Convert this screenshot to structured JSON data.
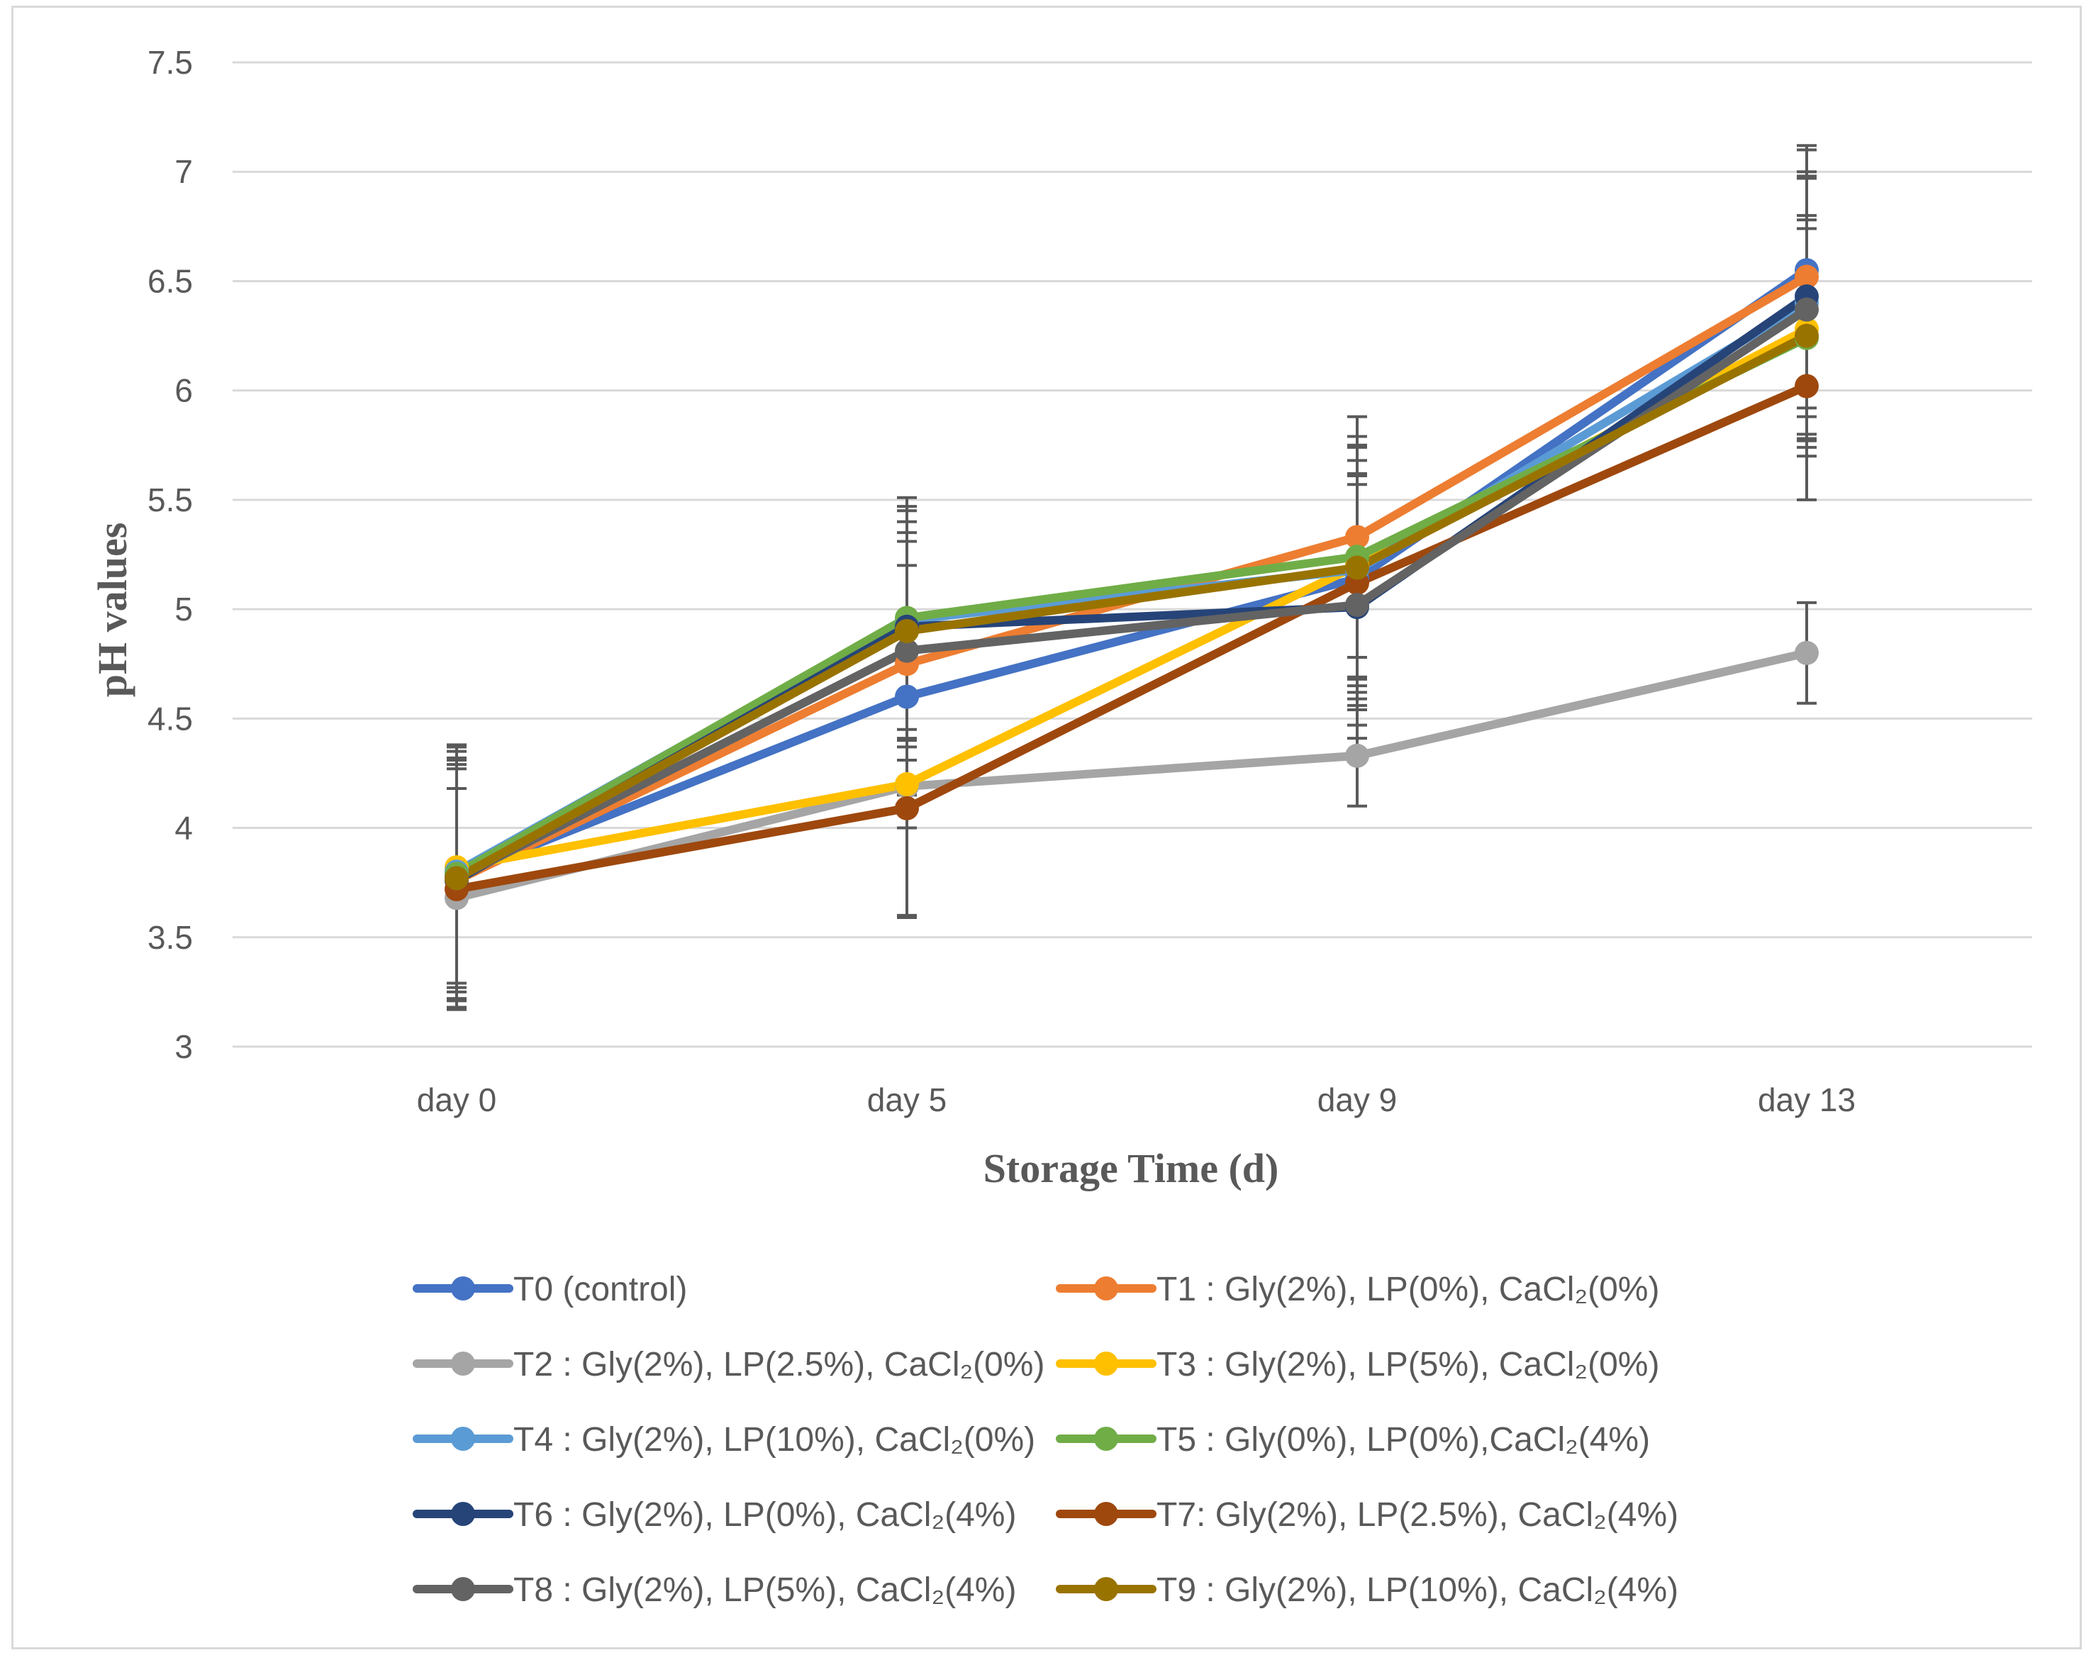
{
  "chart_data": {
    "type": "line",
    "title": "",
    "xlabel": "Storage Time (d)",
    "ylabel": "pH values",
    "ylim": [
      3,
      7.5
    ],
    "yticks": [
      "3",
      "3.5",
      "4",
      "4.5",
      "5",
      "5.5",
      "6",
      "6.5",
      "7",
      "7.5"
    ],
    "categories": [
      "day 0",
      "day 5",
      "day 9",
      "day 13"
    ],
    "grid": true,
    "legend_position": "bottom",
    "series": [
      {
        "name": "T0 (control)",
        "color": "#4472C4",
        "values": [
          3.78,
          4.6,
          5.14,
          6.55
        ],
        "err": [
          0.6,
          0.6,
          0.6,
          0.55
        ]
      },
      {
        "name": "T1 : Gly(2%), LP(0%), CaCl₂(0%)",
        "color": "#ED7D31",
        "values": [
          3.76,
          4.75,
          5.33,
          6.52
        ],
        "err": [
          0.55,
          0.6,
          0.55,
          0.6
        ]
      },
      {
        "name": "T2 : Gly(2%), LP(2.5%), CaCl₂(0%)",
        "color": "#A5A5A5",
        "values": [
          3.68,
          4.19,
          4.33,
          4.8
        ],
        "err": [
          0.5,
          0.6,
          0.23,
          0.23
        ]
      },
      {
        "name": "T3 : Gly(2%), LP(5%), CaCl₂(0%)",
        "color": "#FFC000",
        "values": [
          3.82,
          4.2,
          5.2,
          6.28
        ],
        "err": [
          0.55,
          0.6,
          0.55,
          0.5
        ]
      },
      {
        "name": "T4 : Gly(2%), LP(10%), CaCl₂(0%)",
        "color": "#5B9BD5",
        "values": [
          3.8,
          4.95,
          5.18,
          6.4
        ],
        "err": [
          0.55,
          0.5,
          0.5,
          0.6
        ]
      },
      {
        "name": "T5 : Gly(0%), LP(0%),CaCl₂(4%)",
        "color": "#70AD47",
        "values": [
          3.79,
          4.96,
          5.24,
          6.24
        ],
        "err": [
          0.5,
          0.55,
          0.55,
          0.5
        ]
      },
      {
        "name": "T6 : Gly(2%), LP(0%), CaCl₂(4%)",
        "color": "#264478",
        "values": [
          3.76,
          4.92,
          5.01,
          6.43
        ],
        "err": [
          0.55,
          0.55,
          0.6,
          0.55
        ]
      },
      {
        "name": "T7: Gly(2%), LP(2.5%), CaCl₂(4%)",
        "color": "#9E480E",
        "values": [
          3.72,
          4.09,
          5.12,
          6.02
        ],
        "err": [
          0.55,
          0.5,
          0.5,
          0.52
        ]
      },
      {
        "name": "T8 : Gly(2%), LP(5%), CaCl₂(4%)",
        "color": "#636363",
        "values": [
          3.77,
          4.81,
          5.02,
          6.37
        ],
        "err": [
          0.6,
          0.5,
          0.55,
          0.6
        ]
      },
      {
        "name": "T9 : Gly(2%), LP(10%), CaCl₂(4%)",
        "color": "#997300",
        "values": [
          3.77,
          4.9,
          5.19,
          6.25
        ],
        "err": [
          0.55,
          0.5,
          0.6,
          0.55
        ]
      }
    ]
  }
}
